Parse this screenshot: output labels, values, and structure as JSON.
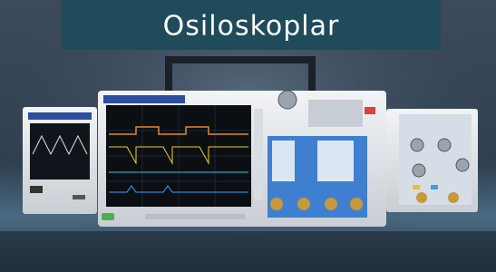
{
  "banner": {
    "title": "Osiloskoplar"
  }
}
